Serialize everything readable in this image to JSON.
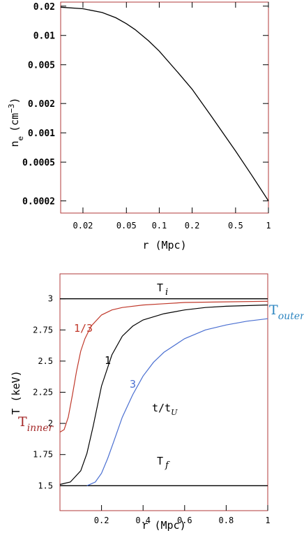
{
  "chart_data": [
    {
      "type": "line",
      "xscale": "log",
      "yscale": "log",
      "xlabel": "r (Mpc)",
      "ylabel": "n",
      "ylabel_sub": "e",
      "ylabel_unit": "(cm",
      "ylabel_sup": "−3",
      "ylabel_close": ")",
      "xlim": [
        0.0125,
        1.0
      ],
      "ylim": [
        0.00015,
        0.022
      ],
      "xticks": [
        {
          "value": 0.02,
          "label": "0.02"
        },
        {
          "value": 0.05,
          "label": "0.05"
        },
        {
          "value": 0.1,
          "label": "0.1"
        },
        {
          "value": 0.2,
          "label": "0.2"
        },
        {
          "value": 0.5,
          "label": "0.5"
        },
        {
          "value": 1,
          "label": "1"
        }
      ],
      "yticks": [
        {
          "value": 0.02,
          "label": "0.02"
        },
        {
          "value": 0.01,
          "label": "0.01"
        },
        {
          "value": 0.005,
          "label": "0.005"
        },
        {
          "value": 0.002,
          "label": "0.002"
        },
        {
          "value": 0.001,
          "label": "0.001"
        },
        {
          "value": 0.0005,
          "label": "0.0005"
        },
        {
          "value": 0.0002,
          "label": "0.0002"
        }
      ],
      "series": [
        {
          "color": "#000000",
          "x": [
            0.0125,
            0.02,
            0.03,
            0.04,
            0.05,
            0.06,
            0.08,
            0.1,
            0.15,
            0.2,
            0.3,
            0.4,
            0.5,
            0.7,
            1.0
          ],
          "y": [
            0.0195,
            0.0188,
            0.0172,
            0.0152,
            0.0132,
            0.0115,
            0.0088,
            0.0069,
            0.0041,
            0.0028,
            0.00148,
            0.00093,
            0.00065,
            0.00037,
            0.0002
          ]
        }
      ]
    },
    {
      "type": "line",
      "xlabel": "r (Mpc)",
      "ylabel": "T (keV)",
      "xlim": [
        0,
        1
      ],
      "ylim": [
        1.3,
        3.2
      ],
      "xticks": [
        {
          "value": 0.2,
          "label": "0.2"
        },
        {
          "value": 0.4,
          "label": "0.4"
        },
        {
          "value": 0.6,
          "label": "0.6"
        },
        {
          "value": 0.8,
          "label": "0.8"
        },
        {
          "value": 1,
          "label": "1"
        }
      ],
      "yticks": [
        {
          "value": 1.5,
          "label": "1.5"
        },
        {
          "value": 1.75,
          "label": "1.75"
        },
        {
          "value": 2,
          "label": "2"
        },
        {
          "value": 2.25,
          "label": "2.25"
        },
        {
          "value": 2.5,
          "label": "2.5"
        },
        {
          "value": 2.75,
          "label": "2.75"
        },
        {
          "value": 3,
          "label": "3"
        }
      ],
      "series": [
        {
          "label": "T",
          "sub": "i",
          "color": "#000000",
          "x": [
            0,
            1
          ],
          "y": [
            3.0,
            3.0
          ]
        },
        {
          "label": "T",
          "sub": "f",
          "color": "#000000",
          "x": [
            0,
            1
          ],
          "y": [
            1.5,
            1.5
          ]
        },
        {
          "label": "1/3",
          "color": "#c0392b",
          "x": [
            0.0,
            0.02,
            0.04,
            0.06,
            0.08,
            0.1,
            0.12,
            0.15,
            0.2,
            0.25,
            0.3,
            0.4,
            0.5,
            0.6,
            0.8,
            1.0
          ],
          "y": [
            1.93,
            1.95,
            2.05,
            2.23,
            2.42,
            2.58,
            2.68,
            2.78,
            2.87,
            2.91,
            2.93,
            2.95,
            2.96,
            2.97,
            2.975,
            2.98
          ]
        },
        {
          "label": "1",
          "color": "#000000",
          "x": [
            0.0,
            0.05,
            0.1,
            0.13,
            0.16,
            0.2,
            0.25,
            0.3,
            0.35,
            0.4,
            0.5,
            0.6,
            0.7,
            0.8,
            1.0
          ],
          "y": [
            1.51,
            1.53,
            1.62,
            1.76,
            1.98,
            2.3,
            2.55,
            2.7,
            2.78,
            2.83,
            2.88,
            2.91,
            2.93,
            2.94,
            2.95
          ]
        },
        {
          "label": "3",
          "color": "#4a6fd1",
          "x": [
            0.13,
            0.17,
            0.2,
            0.23,
            0.26,
            0.3,
            0.35,
            0.4,
            0.45,
            0.5,
            0.6,
            0.7,
            0.8,
            0.9,
            1.0
          ],
          "y": [
            1.5,
            1.53,
            1.6,
            1.72,
            1.86,
            2.05,
            2.23,
            2.38,
            2.49,
            2.57,
            2.68,
            2.75,
            2.79,
            2.82,
            2.84
          ]
        }
      ],
      "annotations": {
        "t_inner": {
          "main": "T",
          "sub": "inner",
          "color": "#a52a2a"
        },
        "t_outer": {
          "main": "T",
          "sub": "outer",
          "color": "#2e86c1"
        },
        "time_param": {
          "main": "t/t",
          "sub": "U"
        }
      }
    }
  ]
}
